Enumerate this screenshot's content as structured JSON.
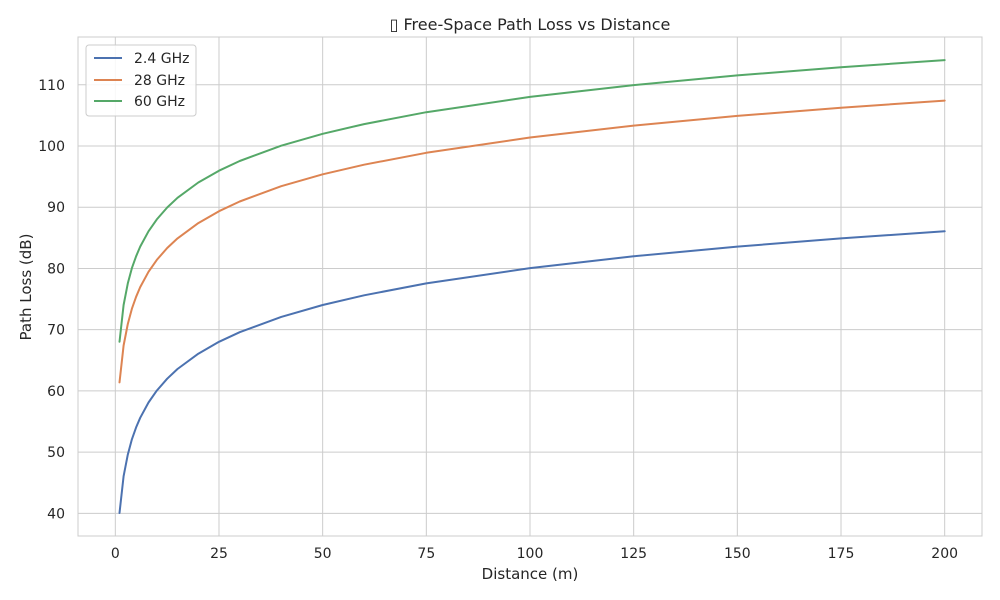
{
  "chart_data": {
    "type": "line",
    "title": "▯ Free-Space Path Loss vs Distance",
    "xlabel": "Distance (m)",
    "ylabel": "Path Loss (dB)",
    "xlim": [
      -9,
      209
    ],
    "ylim": [
      36.3,
      117.8
    ],
    "xticks": [
      0,
      25,
      50,
      75,
      100,
      125,
      150,
      175,
      200
    ],
    "yticks": [
      40,
      50,
      60,
      70,
      80,
      90,
      100,
      110
    ],
    "grid": true,
    "legend_position": "top-left",
    "x": [
      1,
      2,
      3,
      4,
      5,
      6,
      8,
      10,
      12.5,
      15,
      20,
      25,
      30,
      40,
      50,
      60,
      75,
      100,
      125,
      150,
      175,
      200
    ],
    "series": [
      {
        "name": "2.4 GHz",
        "color": "#4c72b0",
        "values": [
          40.05,
          46.07,
          49.59,
          52.09,
          54.03,
          55.61,
          58.11,
          60.05,
          61.99,
          63.57,
          66.07,
          68.01,
          69.59,
          72.09,
          74.03,
          75.61,
          77.55,
          80.05,
          81.99,
          83.57,
          84.91,
          86.07
        ]
      },
      {
        "name": "28 GHz",
        "color": "#dd8452",
        "values": [
          61.39,
          67.41,
          70.93,
          73.43,
          75.37,
          76.95,
          79.45,
          81.39,
          83.33,
          84.91,
          87.41,
          89.35,
          90.93,
          93.43,
          95.37,
          96.95,
          98.89,
          101.39,
          103.33,
          104.91,
          106.25,
          107.41
        ]
      },
      {
        "name": "60 GHz",
        "color": "#55a868",
        "values": [
          68.01,
          74.03,
          77.55,
          80.05,
          81.99,
          83.57,
          86.07,
          88.01,
          89.95,
          91.53,
          94.03,
          95.97,
          97.55,
          100.05,
          101.99,
          103.57,
          105.51,
          108.01,
          109.95,
          111.53,
          112.87,
          114.03
        ]
      }
    ]
  }
}
